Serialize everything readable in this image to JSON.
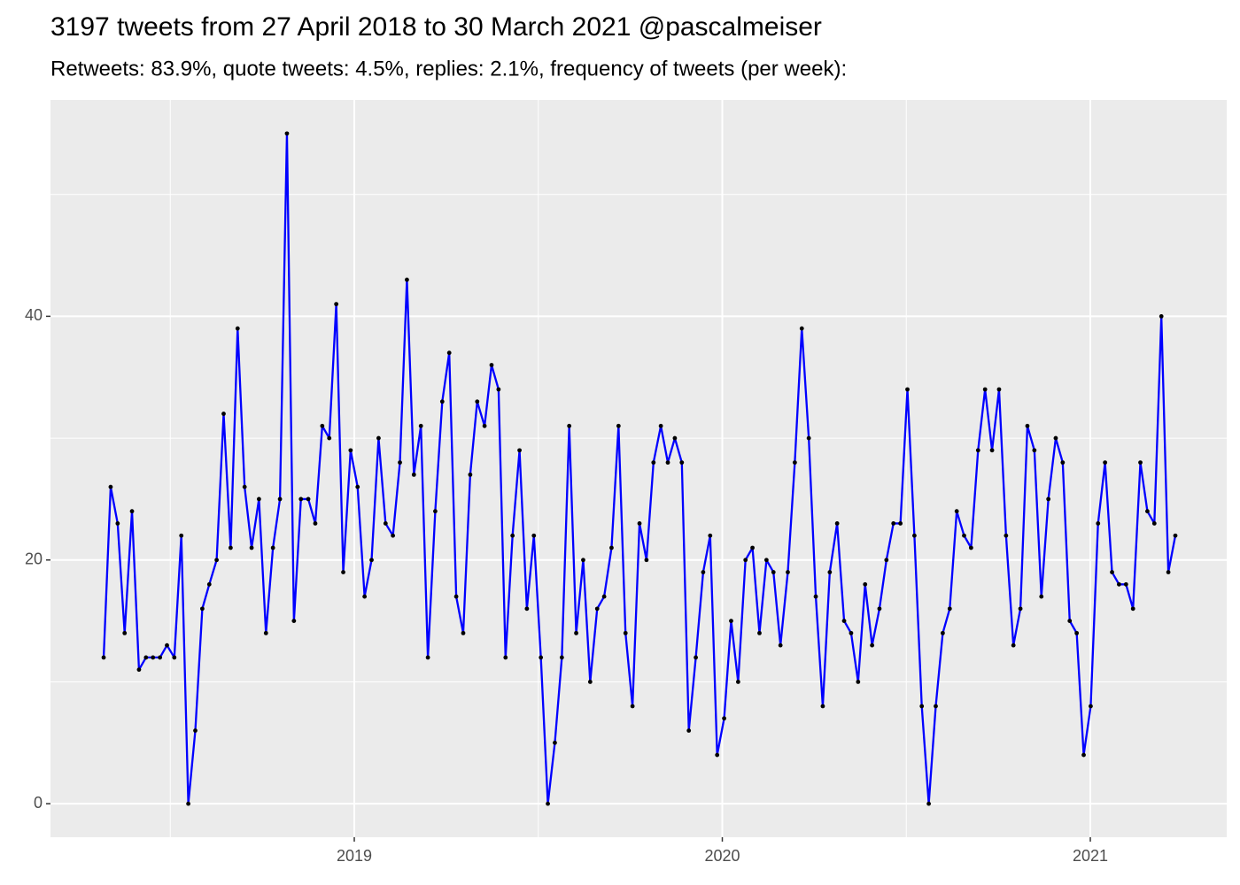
{
  "chart_data": {
    "type": "line",
    "title": "3197 tweets from 27 April 2018 to 30 March 2021 @pascalmeiser",
    "subtitle": "Retweets: 83.9%, quote tweets: 4.5%, replies: 2.1%, frequency of tweets (per week):",
    "x": [
      2018.319,
      2018.338,
      2018.357,
      2018.376,
      2018.396,
      2018.415,
      2018.434,
      2018.453,
      2018.472,
      2018.491,
      2018.511,
      2018.53,
      2018.549,
      2018.568,
      2018.587,
      2018.606,
      2018.626,
      2018.645,
      2018.664,
      2018.683,
      2018.702,
      2018.721,
      2018.741,
      2018.76,
      2018.779,
      2018.798,
      2018.817,
      2018.836,
      2018.855,
      2018.875,
      2018.894,
      2018.913,
      2018.932,
      2018.951,
      2018.97,
      2018.99,
      2019.009,
      2019.028,
      2019.047,
      2019.066,
      2019.085,
      2019.105,
      2019.124,
      2019.143,
      2019.162,
      2019.181,
      2019.2,
      2019.22,
      2019.239,
      2019.258,
      2019.277,
      2019.296,
      2019.315,
      2019.334,
      2019.354,
      2019.373,
      2019.392,
      2019.411,
      2019.43,
      2019.449,
      2019.469,
      2019.488,
      2019.507,
      2019.526,
      2019.545,
      2019.564,
      2019.584,
      2019.603,
      2019.622,
      2019.641,
      2019.66,
      2019.679,
      2019.699,
      2019.718,
      2019.737,
      2019.756,
      2019.775,
      2019.794,
      2019.813,
      2019.833,
      2019.852,
      2019.871,
      2019.89,
      2019.909,
      2019.928,
      2019.948,
      2019.967,
      2019.986,
      2020.005,
      2020.024,
      2020.043,
      2020.063,
      2020.082,
      2020.101,
      2020.12,
      2020.139,
      2020.158,
      2020.178,
      2020.197,
      2020.216,
      2020.235,
      2020.254,
      2020.273,
      2020.292,
      2020.312,
      2020.331,
      2020.35,
      2020.369,
      2020.388,
      2020.407,
      2020.427,
      2020.446,
      2020.465,
      2020.484,
      2020.503,
      2020.522,
      2020.542,
      2020.561,
      2020.58,
      2020.599,
      2020.618,
      2020.637,
      2020.657,
      2020.676,
      2020.695,
      2020.714,
      2020.733,
      2020.752,
      2020.771,
      2020.791,
      2020.81,
      2020.829,
      2020.848,
      2020.867,
      2020.886,
      2020.906,
      2020.925,
      2020.944,
      2020.963,
      2020.982,
      2021.001,
      2021.021,
      2021.04,
      2021.059,
      2021.078,
      2021.097,
      2021.116,
      2021.136,
      2021.155,
      2021.174,
      2021.193,
      2021.212,
      2021.231
    ],
    "values": [
      12,
      26,
      23,
      14,
      24,
      11,
      12,
      12,
      12,
      13,
      12,
      22,
      0,
      6,
      16,
      18,
      20,
      32,
      21,
      39,
      26,
      21,
      25,
      14,
      21,
      25,
      55,
      15,
      25,
      25,
      23,
      31,
      30,
      41,
      19,
      29,
      26,
      17,
      20,
      30,
      23,
      22,
      28,
      43,
      27,
      31,
      12,
      24,
      33,
      37,
      17,
      14,
      27,
      33,
      31,
      36,
      34,
      12,
      22,
      29,
      16,
      22,
      12,
      0,
      5,
      12,
      31,
      14,
      20,
      10,
      16,
      17,
      21,
      31,
      14,
      8,
      23,
      20,
      28,
      31,
      28,
      30,
      28,
      6,
      12,
      19,
      22,
      4,
      7,
      15,
      10,
      20,
      21,
      14,
      20,
      19,
      13,
      19,
      28,
      39,
      30,
      17,
      8,
      19,
      23,
      15,
      14,
      10,
      18,
      13,
      16,
      20,
      23,
      23,
      34,
      22,
      8,
      0,
      8,
      14,
      16,
      24,
      22,
      21,
      29,
      34,
      29,
      34,
      22,
      13,
      16,
      31,
      29,
      17,
      25,
      30,
      28,
      15,
      14,
      4,
      8,
      23,
      28,
      19,
      18,
      18,
      16,
      28,
      24,
      23,
      40,
      19,
      22
    ],
    "color": "#0000ff",
    "point_color": "#000000",
    "xlim": [
      2018.1745,
      2021.3706
    ],
    "xticks": [
      2019,
      2020,
      2021
    ],
    "xminor": [
      2018.5,
      2019.5,
      2020.5
    ],
    "ylim": [
      -2.75,
      57.75
    ],
    "yticks": [
      0,
      20,
      40
    ],
    "yminor": [
      10,
      30,
      50
    ],
    "grid": true
  }
}
